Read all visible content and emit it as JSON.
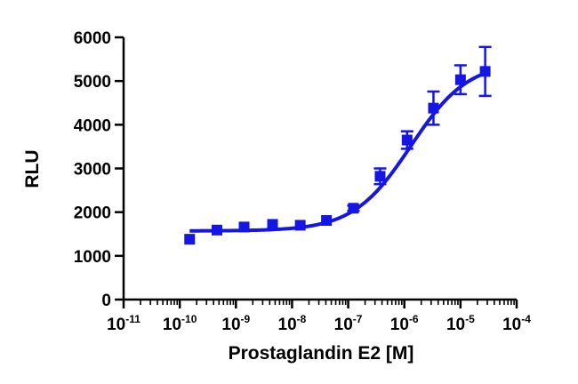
{
  "chart_data": {
    "type": "scatter",
    "xlabel": "Prostaglandin E2 [M]",
    "ylabel": "RLU",
    "x_scale": "log",
    "xlim": [
      1e-11,
      0.0001
    ],
    "ylim": [
      0,
      6000
    ],
    "x_tick_labels": [
      {
        "base": "10",
        "exp": "-11"
      },
      {
        "base": "10",
        "exp": "-10"
      },
      {
        "base": "10",
        "exp": "-9"
      },
      {
        "base": "10",
        "exp": "-8"
      },
      {
        "base": "10",
        "exp": "-7"
      },
      {
        "base": "10",
        "exp": "-6"
      },
      {
        "base": "10",
        "exp": "-5"
      },
      {
        "base": "10",
        "exp": "-4"
      }
    ],
    "y_ticks": [
      0,
      1000,
      2000,
      3000,
      4000,
      5000,
      6000
    ],
    "grid": false,
    "color": "#1515e6",
    "series": [
      {
        "points": [
          {
            "x": 1.5e-10,
            "y": 1380,
            "err": 0
          },
          {
            "x": 4.6e-10,
            "y": 1590,
            "err": 0
          },
          {
            "x": 1.4e-09,
            "y": 1660,
            "err": 0
          },
          {
            "x": 4.5e-09,
            "y": 1720,
            "err": 0
          },
          {
            "x": 1.4e-08,
            "y": 1700,
            "err": 0
          },
          {
            "x": 4.1e-08,
            "y": 1810,
            "err": 0
          },
          {
            "x": 1.24e-07,
            "y": 2090,
            "err": 60
          },
          {
            "x": 3.7e-07,
            "y": 2820,
            "err": 180
          },
          {
            "x": 1.12e-06,
            "y": 3650,
            "err": 200
          },
          {
            "x": 3.3e-06,
            "y": 4380,
            "err": 380
          },
          {
            "x": 1e-05,
            "y": 5030,
            "err": 330
          },
          {
            "x": 2.75e-05,
            "y": 5220,
            "err": 560
          }
        ],
        "fit": {
          "model": "four-parameter logistic",
          "bottom": 1570,
          "top": 5450,
          "ec50": 1.3e-06,
          "hill": 0.85,
          "x_range": [
            1.5e-10,
            2.75e-05
          ]
        }
      }
    ]
  }
}
